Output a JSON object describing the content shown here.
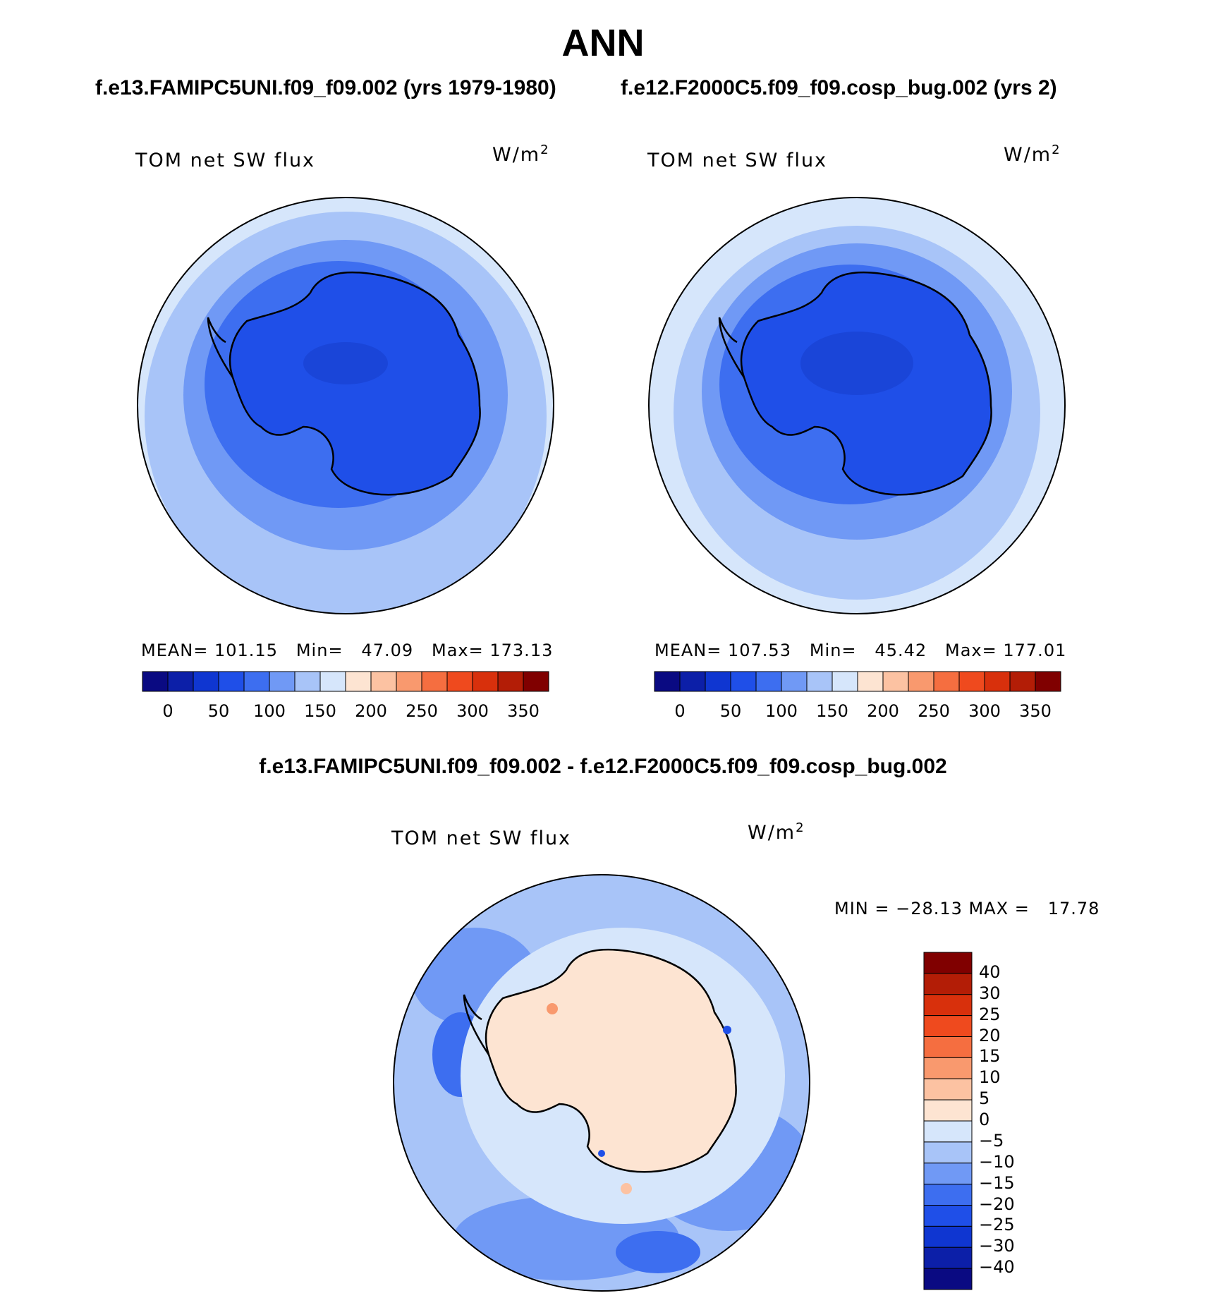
{
  "figure": {
    "title": "ANN",
    "subtitle_left": "f.e13.FAMIPC5UNI.f09_f09.002 (yrs 1979-1980)",
    "subtitle_right": "f.e12.F2000C5.f09_f09.cosp_bug.002 (yrs 2)",
    "diff_title": "f.e13.FAMIPC5UNI.f09_f09.002 - f.e12.F2000C5.f09_f09.cosp_bug.002"
  },
  "panels": [
    {
      "variable": "TOM net SW flux",
      "units": "W/m",
      "units_sup": "2",
      "stats": "MEAN= 101.15   Min=   47.09   Max= 173.13"
    },
    {
      "variable": "TOM net SW flux",
      "units": "W/m",
      "units_sup": "2",
      "stats": "MEAN= 107.53   Min=   45.42   Max= 177.01"
    },
    {
      "variable": "TOM net SW flux",
      "units": "W/m",
      "units_sup": "2",
      "stats": "MIN = −28.13 MAX =   17.78"
    }
  ],
  "colorbar_abs": {
    "colors": [
      "#0a0a82",
      "#0c1fa8",
      "#0f36d1",
      "#1f4fe8",
      "#3d6ef0",
      "#7099f5",
      "#a8c4f8",
      "#d6e6fb",
      "#fde4d2",
      "#fcc2a2",
      "#f9996e",
      "#f56e40",
      "#ef4a1e",
      "#d8300c",
      "#b31d06",
      "#800000"
    ],
    "ticks": [
      "0",
      "50",
      "100",
      "150",
      "200",
      "250",
      "300",
      "350"
    ]
  },
  "colorbar_diff": {
    "colors": [
      "#800000",
      "#b31d06",
      "#d8300c",
      "#ef4a1e",
      "#f56e40",
      "#f9996e",
      "#fcc2a2",
      "#fde4d2",
      "#d6e6fb",
      "#a8c4f8",
      "#7099f5",
      "#3d6ef0",
      "#1f4fe8",
      "#0f36d1",
      "#0c1fa8",
      "#0a0a82"
    ],
    "ticks": [
      "40",
      "30",
      "25",
      "20",
      "15",
      "10",
      "5",
      "0",
      "−5",
      "−10",
      "−15",
      "−20",
      "−25",
      "−30",
      "−40"
    ]
  },
  "colors": {
    "deep_blue": "#1f4fe8",
    "mid_blue": "#3d6ef0",
    "light_blue": "#7099f5",
    "pale_blue": "#a8c4f8",
    "faint_blue": "#d6e6fb",
    "peach": "#fde4d2"
  }
}
